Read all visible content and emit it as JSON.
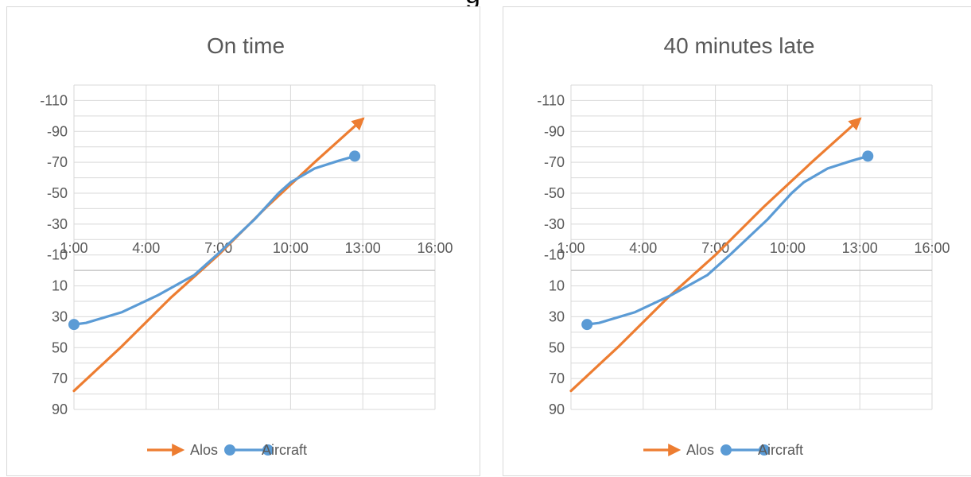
{
  "page": {
    "heading_fragment": "g"
  },
  "chart_data": [
    {
      "type": "line",
      "title": "On time",
      "xlabel": "",
      "ylabel": "",
      "x_ticks": [
        "1:00",
        "4:00",
        "7:00",
        "10:00",
        "13:00",
        "16:00"
      ],
      "y_ticks": [
        "-110",
        "-90",
        "-70",
        "-50",
        "-30",
        "-10",
        "10",
        "30",
        "50",
        "70",
        "90"
      ],
      "xlim": [
        "1:00",
        "16:00"
      ],
      "ylim": [
        -120,
        90
      ],
      "y_reversed": true,
      "grid": true,
      "legend_position": "bottom",
      "series": [
        {
          "name": "Alos",
          "color": "#ED7D31",
          "marker": "arrow",
          "points": [
            [
              "1:00",
              78
            ],
            [
              "3:00",
              49
            ],
            [
              "5:00",
              18
            ],
            [
              "7:00",
              -10
            ],
            [
              "9:00",
              -41
            ],
            [
              "11:00",
              -70
            ],
            [
              "13:00",
              -98
            ]
          ]
        },
        {
          "name": "Aircraft",
          "color": "#5B9BD5",
          "marker": "circle-endpoints",
          "points": [
            [
              "1:00",
              35
            ],
            [
              "1:30",
              34
            ],
            [
              "3:00",
              27
            ],
            [
              "4:30",
              16
            ],
            [
              "6:00",
              3
            ],
            [
              "7:00",
              -11
            ],
            [
              "8:30",
              -33
            ],
            [
              "9:30",
              -50
            ],
            [
              "10:00",
              -57
            ],
            [
              "11:00",
              -66
            ],
            [
              "12:00",
              -71
            ],
            [
              "12:40",
              -74
            ]
          ]
        }
      ]
    },
    {
      "type": "line",
      "title": "40 minutes late",
      "xlabel": "",
      "ylabel": "",
      "x_ticks": [
        "1:00",
        "4:00",
        "7:00",
        "10:00",
        "13:00",
        "16:00"
      ],
      "y_ticks": [
        "-110",
        "-90",
        "-70",
        "-50",
        "-30",
        "-10",
        "10",
        "30",
        "50",
        "70",
        "90"
      ],
      "xlim": [
        "1:00",
        "16:00"
      ],
      "ylim": [
        -120,
        90
      ],
      "y_reversed": true,
      "grid": true,
      "legend_position": "bottom",
      "series": [
        {
          "name": "Alos",
          "color": "#ED7D31",
          "marker": "arrow",
          "points": [
            [
              "1:00",
              78
            ],
            [
              "3:00",
              49
            ],
            [
              "5:00",
              18
            ],
            [
              "7:00",
              -10
            ],
            [
              "9:00",
              -41
            ],
            [
              "11:00",
              -70
            ],
            [
              "13:00",
              -98
            ]
          ]
        },
        {
          "name": "Aircraft",
          "color": "#5B9BD5",
          "marker": "circle-endpoints",
          "points": [
            [
              "1:40",
              35
            ],
            [
              "2:10",
              34
            ],
            [
              "3:40",
              27
            ],
            [
              "5:10",
              16
            ],
            [
              "6:40",
              3
            ],
            [
              "7:40",
              -11
            ],
            [
              "9:10",
              -33
            ],
            [
              "10:10",
              -50
            ],
            [
              "10:40",
              -57
            ],
            [
              "11:40",
              -66
            ],
            [
              "12:40",
              -71
            ],
            [
              "13:20",
              -74
            ]
          ]
        }
      ]
    }
  ]
}
